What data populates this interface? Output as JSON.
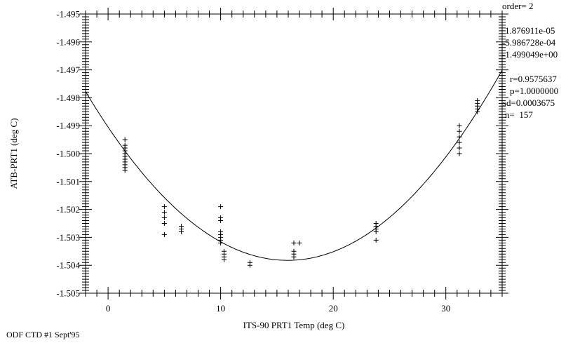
{
  "chart_data": {
    "type": "scatter",
    "xlabel": "ITS-90 PRT1 Temp (deg C)",
    "ylabel": "ATB-PRT1 (deg C)",
    "xlim": [
      -2,
      35
    ],
    "ylim": [
      -1.505,
      -1.495
    ],
    "x_ticks": [
      "0",
      "10",
      "20",
      "30"
    ],
    "y_ticks": [
      "-1.495",
      "-1.496",
      "-1.497",
      "-1.498",
      "-1.499",
      "-1.500",
      "-1.501",
      "-1.502",
      "-1.503",
      "-1.504",
      "-1.505"
    ],
    "grid": false,
    "marker": "plus",
    "points": [
      [
        1.5,
        -1.4995
      ],
      [
        1.5,
        -1.4997
      ],
      [
        1.5,
        -1.4998
      ],
      [
        1.5,
        -1.4999
      ],
      [
        1.5,
        -1.5
      ],
      [
        1.5,
        -1.5001
      ],
      [
        1.5,
        -1.5002
      ],
      [
        1.5,
        -1.5003
      ],
      [
        1.5,
        -1.5004
      ],
      [
        1.5,
        -1.5005
      ],
      [
        1.5,
        -1.5006
      ],
      [
        5.0,
        -1.5019
      ],
      [
        5.0,
        -1.5021
      ],
      [
        5.0,
        -1.5023
      ],
      [
        5.0,
        -1.5025
      ],
      [
        5.0,
        -1.5029
      ],
      [
        6.5,
        -1.5026
      ],
      [
        6.5,
        -1.5027
      ],
      [
        6.5,
        -1.5028
      ],
      [
        10.0,
        -1.5019
      ],
      [
        10.0,
        -1.5023
      ],
      [
        10.0,
        -1.5024
      ],
      [
        10.0,
        -1.5028
      ],
      [
        10.0,
        -1.5029
      ],
      [
        10.0,
        -1.503
      ],
      [
        10.0,
        -1.5031
      ],
      [
        10.0,
        -1.5032
      ],
      [
        10.3,
        -1.5035
      ],
      [
        10.3,
        -1.5036
      ],
      [
        10.3,
        -1.5037
      ],
      [
        10.3,
        -1.5038
      ],
      [
        12.6,
        -1.5039
      ],
      [
        12.6,
        -1.504
      ],
      [
        16.5,
        -1.5032
      ],
      [
        16.5,
        -1.5035
      ],
      [
        16.5,
        -1.5036
      ],
      [
        16.5,
        -1.5037
      ],
      [
        17.0,
        -1.5032
      ],
      [
        23.8,
        -1.5025
      ],
      [
        23.8,
        -1.5026
      ],
      [
        23.8,
        -1.5027
      ],
      [
        23.8,
        -1.5028
      ],
      [
        23.8,
        -1.5031
      ],
      [
        31.2,
        -1.499
      ],
      [
        31.2,
        -1.4992
      ],
      [
        31.2,
        -1.4994
      ],
      [
        31.2,
        -1.4996
      ],
      [
        31.2,
        -1.4998
      ],
      [
        31.2,
        -1.5
      ],
      [
        32.8,
        -1.4981
      ],
      [
        32.8,
        -1.4982
      ],
      [
        32.8,
        -1.4983
      ],
      [
        32.8,
        -1.4984
      ],
      [
        32.8,
        -1.4985
      ]
    ],
    "fit": {
      "type": "polynomial",
      "order": 2,
      "coefficients": [
        1.876911e-05,
        -0.0005986728,
        -1.499049
      ]
    }
  },
  "stats": {
    "order": "order= 2",
    "coef_a": "1.876911e-05",
    "coef_b": "-5.986728e-04",
    "coef_c": "-1.499049e+00",
    "r": "r=0.9575637",
    "p": "p=1.0000000",
    "sd": "sd=0.0003675",
    "n": "n=  157"
  },
  "footer": "ODF CTD #1 Sept'95"
}
